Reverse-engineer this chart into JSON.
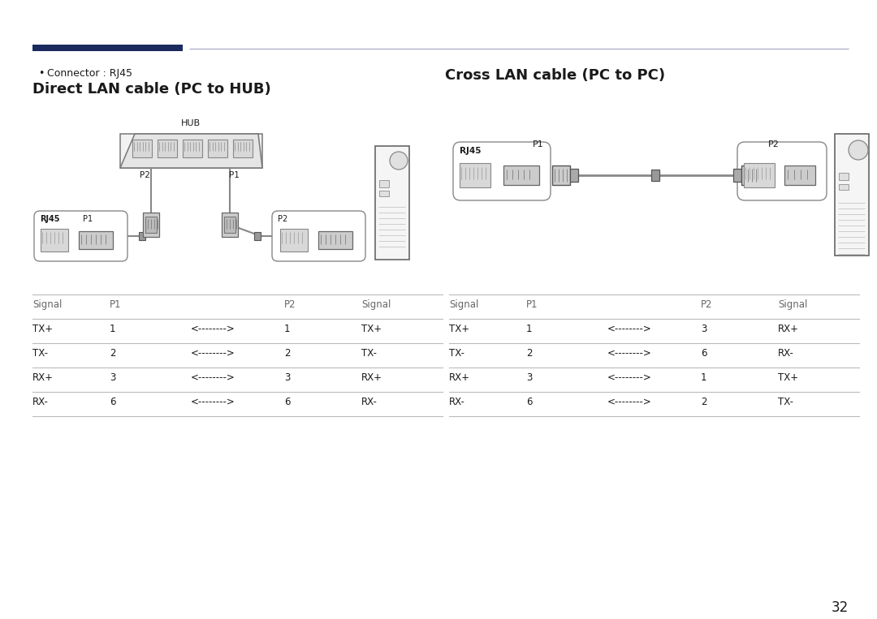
{
  "bg_color": "#ffffff",
  "text_color": "#1a1a1a",
  "dark_blue": "#1a2a5e",
  "line_gray": "#999999",
  "table_line_color": "#bbbbbb",
  "bullet_text": "Connector : RJ45",
  "left_title": "Direct LAN cable (PC to HUB)",
  "right_title": "Cross LAN cable (PC to PC)",
  "page_number": "32",
  "left_table_headers": [
    "Signal",
    "P1",
    "",
    "P2",
    "Signal"
  ],
  "left_table_rows": [
    [
      "TX+",
      "1",
      "<-------->",
      "1",
      "TX+"
    ],
    [
      "TX-",
      "2",
      "<-------->",
      "2",
      "TX-"
    ],
    [
      "RX+",
      "3",
      "<-------->",
      "3",
      "RX+"
    ],
    [
      "RX-",
      "6",
      "<-------->",
      "6",
      "RX-"
    ]
  ],
  "right_table_headers": [
    "Signal",
    "P1",
    "",
    "P2",
    "Signal"
  ],
  "right_table_rows": [
    [
      "TX+",
      "1",
      "<-------->",
      "3",
      "RX+"
    ],
    [
      "TX-",
      "2",
      "<-------->",
      "6",
      "RX-"
    ],
    [
      "RX+",
      "3",
      "<-------->",
      "1",
      "TX+"
    ],
    [
      "RX-",
      "6",
      "<-------->",
      "2",
      "TX-"
    ]
  ],
  "hub_label": "HUB",
  "rj45_label": "RJ45",
  "p1_label": "P1",
  "p2_label": "P2"
}
